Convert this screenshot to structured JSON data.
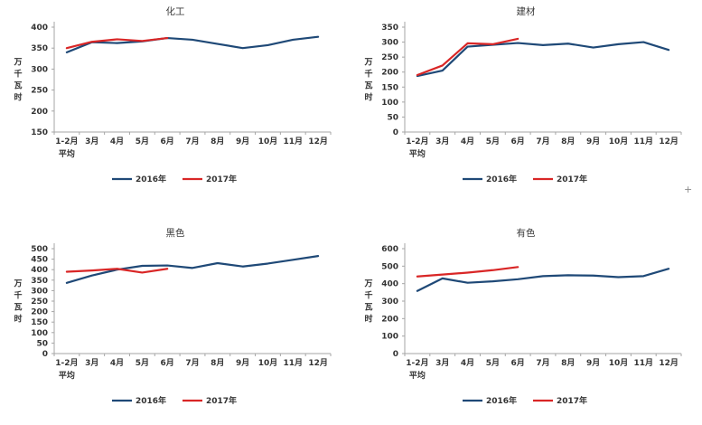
{
  "page": {
    "background": "#ffffff"
  },
  "colors": {
    "series_2016": "#1f4977",
    "series_2017": "#d92626",
    "axis": "#a6a6a6",
    "text": "#333333"
  },
  "artifacts": {
    "plus_mark": "+"
  },
  "chart_data": [
    {
      "type": "line",
      "title": "化工",
      "ylabel": "万千瓦时",
      "xlabel": "",
      "categories": [
        "1-2月",
        "3月",
        "4月",
        "5月",
        "6月",
        "7月",
        "8月",
        "9月",
        "10月",
        "11月",
        "12月"
      ],
      "first_category_sub": "平均",
      "ylim": [
        150,
        400
      ],
      "ytick_step": 50,
      "grid": false,
      "legend_position": "bottom",
      "series": [
        {
          "name": "2016年",
          "values": [
            340,
            364,
            362,
            366,
            374,
            370,
            360,
            350,
            357,
            370,
            377
          ]
        },
        {
          "name": "2017年",
          "values": [
            350,
            365,
            371,
            367,
            374
          ]
        }
      ]
    },
    {
      "type": "line",
      "title": "建材",
      "ylabel": "万千瓦时",
      "xlabel": "",
      "categories": [
        "1-2月",
        "3月",
        "4月",
        "5月",
        "6月",
        "7月",
        "8月",
        "9月",
        "10月",
        "11月",
        "12月"
      ],
      "first_category_sub": "平均",
      "ylim": [
        0,
        350
      ],
      "ytick_step": 50,
      "grid": false,
      "legend_position": "bottom",
      "series": [
        {
          "name": "2016年",
          "values": [
            187,
            205,
            285,
            291,
            297,
            290,
            295,
            282,
            293,
            300,
            274
          ]
        },
        {
          "name": "2017年",
          "values": [
            190,
            222,
            296,
            293,
            311
          ]
        }
      ]
    },
    {
      "type": "line",
      "title": "黑色",
      "ylabel": "万千瓦时",
      "xlabel": "",
      "categories": [
        "1-2月",
        "3月",
        "4月",
        "5月",
        "6月",
        "7月",
        "8月",
        "9月",
        "10月",
        "11月",
        "12月"
      ],
      "first_category_sub": "平均",
      "ylim": [
        0,
        500
      ],
      "ytick_step": 50,
      "grid": false,
      "legend_position": "bottom",
      "series": [
        {
          "name": "2016年",
          "values": [
            337,
            372,
            400,
            418,
            420,
            408,
            431,
            415,
            429,
            447,
            465
          ]
        },
        {
          "name": "2017年",
          "values": [
            390,
            396,
            404,
            386,
            404
          ]
        }
      ]
    },
    {
      "type": "line",
      "title": "有色",
      "ylabel": "万千瓦时",
      "xlabel": "",
      "categories": [
        "1-2月",
        "3月",
        "4月",
        "5月",
        "6月",
        "7月",
        "8月",
        "9月",
        "10月",
        "11月",
        "12月"
      ],
      "first_category_sub": "平均",
      "ylim": [
        0,
        600
      ],
      "ytick_step": 100,
      "grid": false,
      "legend_position": "bottom",
      "series": [
        {
          "name": "2016年",
          "values": [
            358,
            430,
            405,
            413,
            425,
            443,
            448,
            446,
            437,
            443,
            485
          ]
        },
        {
          "name": "2017年",
          "values": [
            441,
            452,
            463,
            477,
            495
          ]
        }
      ]
    }
  ]
}
